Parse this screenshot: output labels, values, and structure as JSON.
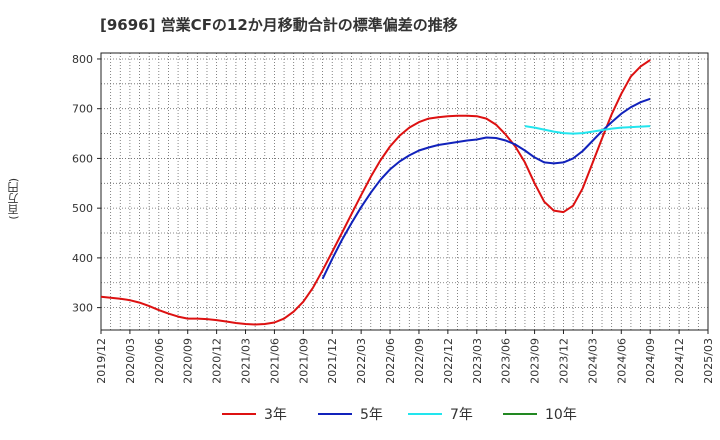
{
  "chart_data": {
    "type": "line",
    "title": "[9696]  営業CFの12か月移動合計の標準偏差の推移",
    "xlabel": "",
    "ylabel": "(百万円)",
    "ylim": [
      255,
      812
    ],
    "yticks": [
      300,
      400,
      500,
      600,
      700,
      800
    ],
    "x_ticks": [
      "2019/12",
      "2020/03",
      "2020/06",
      "2020/09",
      "2020/12",
      "2021/03",
      "2021/06",
      "2021/09",
      "2021/12",
      "2022/03",
      "2022/06",
      "2022/09",
      "2022/12",
      "2023/03",
      "2023/06",
      "2023/09",
      "2023/12",
      "2024/03",
      "2024/06",
      "2024/09",
      "2024/12",
      "2025/03"
    ],
    "grid": true,
    "legend_position": "bottom",
    "series": [
      {
        "name": "3年",
        "color": "#dd1111",
        "points": [
          [
            "2019/12",
            322
          ],
          [
            "2020/01",
            320
          ],
          [
            "2020/02",
            318
          ],
          [
            "2020/03",
            315
          ],
          [
            "2020/04",
            310
          ],
          [
            "2020/05",
            303
          ],
          [
            "2020/06",
            295
          ],
          [
            "2020/07",
            288
          ],
          [
            "2020/08",
            282
          ],
          [
            "2020/09",
            278
          ],
          [
            "2020/10",
            278
          ],
          [
            "2020/11",
            277
          ],
          [
            "2020/12",
            275
          ],
          [
            "2021/01",
            272
          ],
          [
            "2021/02",
            269
          ],
          [
            "2021/03",
            267
          ],
          [
            "2021/04",
            266
          ],
          [
            "2021/05",
            267
          ],
          [
            "2021/06",
            270
          ],
          [
            "2021/07",
            278
          ],
          [
            "2021/08",
            292
          ],
          [
            "2021/09",
            312
          ],
          [
            "2021/10",
            340
          ],
          [
            "2021/11",
            375
          ],
          [
            "2021/12",
            412
          ],
          [
            "2022/01",
            450
          ],
          [
            "2022/02",
            488
          ],
          [
            "2022/03",
            526
          ],
          [
            "2022/04",
            563
          ],
          [
            "2022/05",
            596
          ],
          [
            "2022/06",
            624
          ],
          [
            "2022/07",
            646
          ],
          [
            "2022/08",
            662
          ],
          [
            "2022/09",
            673
          ],
          [
            "2022/10",
            680
          ],
          [
            "2022/11",
            683
          ],
          [
            "2022/12",
            685
          ],
          [
            "2023/01",
            686
          ],
          [
            "2023/02",
            686
          ],
          [
            "2023/03",
            685
          ],
          [
            "2023/04",
            680
          ],
          [
            "2023/05",
            668
          ],
          [
            "2023/06",
            648
          ],
          [
            "2023/07",
            624
          ],
          [
            "2023/08",
            592
          ],
          [
            "2023/09",
            550
          ],
          [
            "2023/10",
            513
          ],
          [
            "2023/11",
            495
          ],
          [
            "2023/12",
            492
          ],
          [
            "2024/01",
            505
          ],
          [
            "2024/02",
            540
          ],
          [
            "2024/03",
            590
          ],
          [
            "2024/04",
            640
          ],
          [
            "2024/05",
            689
          ],
          [
            "2024/06",
            730
          ],
          [
            "2024/07",
            765
          ],
          [
            "2024/08",
            785
          ],
          [
            "2024/09",
            798
          ]
        ]
      },
      {
        "name": "5年",
        "color": "#1122bb",
        "points": [
          [
            "2021/11",
            358
          ],
          [
            "2021/12",
            398
          ],
          [
            "2022/01",
            436
          ],
          [
            "2022/02",
            470
          ],
          [
            "2022/03",
            502
          ],
          [
            "2022/04",
            531
          ],
          [
            "2022/05",
            557
          ],
          [
            "2022/06",
            578
          ],
          [
            "2022/07",
            594
          ],
          [
            "2022/08",
            606
          ],
          [
            "2022/09",
            616
          ],
          [
            "2022/10",
            622
          ],
          [
            "2022/11",
            627
          ],
          [
            "2022/12",
            630
          ],
          [
            "2023/01",
            633
          ],
          [
            "2023/02",
            636
          ],
          [
            "2023/03",
            638
          ],
          [
            "2023/04",
            642
          ],
          [
            "2023/05",
            641
          ],
          [
            "2023/06",
            636
          ],
          [
            "2023/07",
            628
          ],
          [
            "2023/08",
            616
          ],
          [
            "2023/09",
            602
          ],
          [
            "2023/10",
            592
          ],
          [
            "2023/11",
            590
          ],
          [
            "2023/12",
            592
          ],
          [
            "2024/01",
            600
          ],
          [
            "2024/02",
            615
          ],
          [
            "2024/03",
            635
          ],
          [
            "2024/04",
            655
          ],
          [
            "2024/05",
            673
          ],
          [
            "2024/06",
            690
          ],
          [
            "2024/07",
            703
          ],
          [
            "2024/08",
            713
          ],
          [
            "2024/09",
            720
          ]
        ]
      },
      {
        "name": "7年",
        "color": "#22e5ee",
        "points": [
          [
            "2023/08",
            665
          ],
          [
            "2023/09",
            662
          ],
          [
            "2023/10",
            658
          ],
          [
            "2023/11",
            654
          ],
          [
            "2023/12",
            651
          ],
          [
            "2024/01",
            650
          ],
          [
            "2024/02",
            651
          ],
          [
            "2024/03",
            654
          ],
          [
            "2024/04",
            657
          ],
          [
            "2024/05",
            660
          ],
          [
            "2024/06",
            662
          ],
          [
            "2024/07",
            663
          ],
          [
            "2024/08",
            664
          ],
          [
            "2024/09",
            665
          ]
        ]
      },
      {
        "name": "10年",
        "color": "#228822",
        "points": []
      }
    ]
  }
}
